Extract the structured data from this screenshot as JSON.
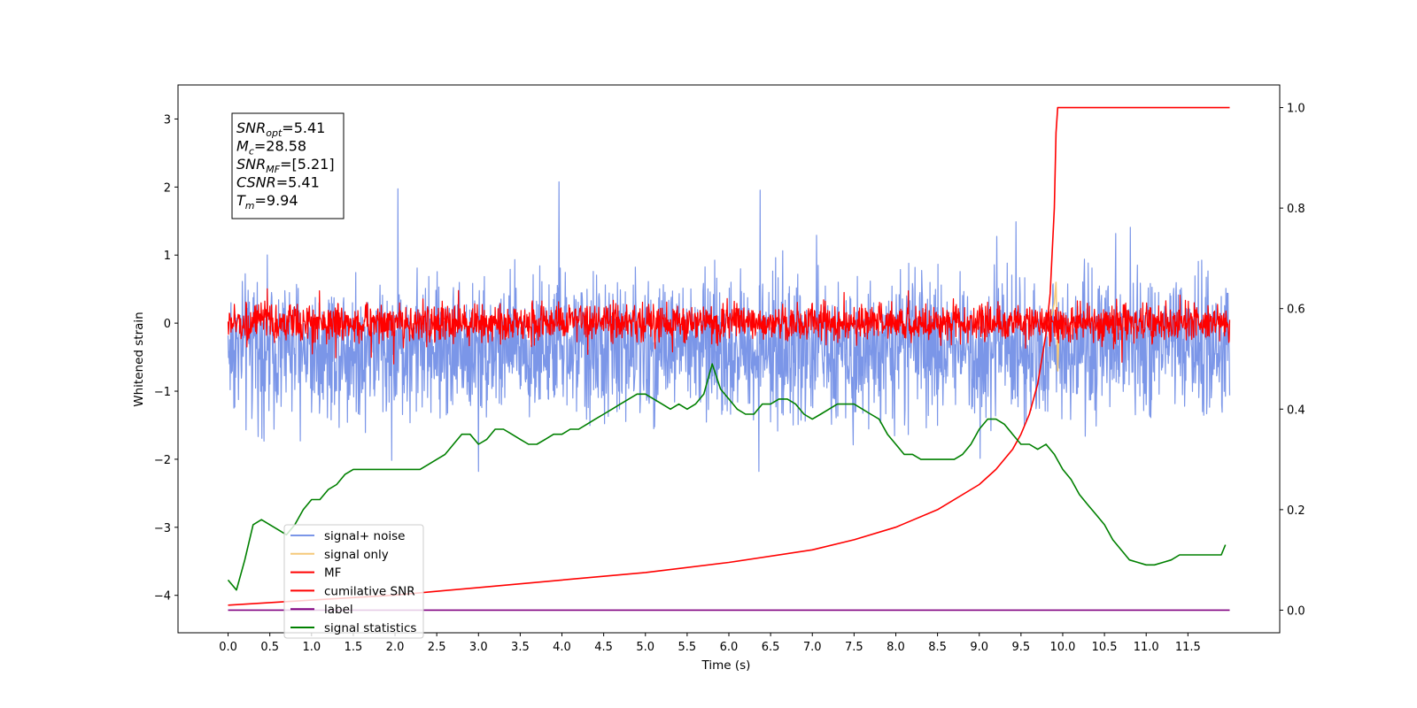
{
  "chart_data": {
    "type": "line",
    "title": "",
    "xlabel": "Time (s)",
    "ylabel": "Whitened strain",
    "xlim": [
      -0.6,
      12.6
    ],
    "ylim": [
      -4.55,
      3.5
    ],
    "y2lim": [
      -0.045,
      1.045
    ],
    "xticks": [
      0.0,
      0.5,
      1.0,
      1.5,
      2.0,
      2.5,
      3.0,
      3.5,
      4.0,
      4.5,
      5.0,
      5.5,
      6.0,
      6.5,
      7.0,
      7.5,
      8.0,
      8.5,
      9.0,
      9.5,
      10.0,
      10.5,
      11.0,
      11.5
    ],
    "xtick_labels": [
      "0.0",
      "0.5",
      "1.0",
      "1.5",
      "2.0",
      "2.5",
      "3.0",
      "3.5",
      "4.0",
      "4.5",
      "5.0",
      "5.5",
      "6.0",
      "6.5",
      "7.0",
      "7.5",
      "8.0",
      "8.5",
      "9.0",
      "9.5",
      "10.0",
      "10.5",
      "11.0",
      "11.5"
    ],
    "yticks": [
      3,
      2,
      1,
      0,
      -1,
      -2,
      -3,
      -4
    ],
    "ytick_labels": [
      "3",
      "2",
      "1",
      "0",
      "−1",
      "−2",
      "−3",
      "−4"
    ],
    "y2ticks": [
      1.0,
      0.8,
      0.6,
      0.4,
      0.2,
      0.0
    ],
    "y2tick_labels": [
      "1.0",
      "0.8",
      "0.6",
      "0.4",
      "0.2",
      "0.0"
    ],
    "grid": false,
    "legend_position": "lower-left",
    "series": [
      {
        "name": "signal+ noise",
        "axis": "left",
        "color": "#7b96e8",
        "kind": "noise",
        "mean": -0.35,
        "spread": 0.62,
        "x_range": [
          0.0,
          12.0
        ]
      },
      {
        "name": "signal only",
        "axis": "left",
        "color": "#f5c97a",
        "kind": "chirp",
        "x": [
          9.85,
          9.9,
          9.92,
          9.94,
          9.96
        ],
        "y": [
          0.0,
          0.3,
          0.6,
          -0.7,
          0.0
        ]
      },
      {
        "name": "MF",
        "axis": "left",
        "color": "#ff0000",
        "kind": "noise",
        "mean": 0.0,
        "spread": 0.17,
        "x_range": [
          0.0,
          12.0
        ]
      },
      {
        "name": "cumilative SNR",
        "axis": "right",
        "color": "#ff0000",
        "x": [
          0.0,
          1.0,
          2.0,
          3.0,
          4.0,
          5.0,
          6.0,
          7.0,
          7.5,
          8.0,
          8.5,
          9.0,
          9.2,
          9.4,
          9.5,
          9.6,
          9.7,
          9.8,
          9.85,
          9.9,
          9.92,
          9.94,
          9.96,
          10.5,
          11.0,
          11.5,
          12.0
        ],
        "y": [
          0.01,
          0.02,
          0.03,
          0.045,
          0.06,
          0.075,
          0.095,
          0.12,
          0.14,
          0.165,
          0.2,
          0.25,
          0.28,
          0.32,
          0.35,
          0.39,
          0.45,
          0.55,
          0.63,
          0.8,
          0.95,
          1.0,
          1.0,
          1.0,
          1.0,
          1.0,
          1.0
        ]
      },
      {
        "name": "label",
        "axis": "right",
        "color": "#800080",
        "x": [
          0.0,
          12.0
        ],
        "y": [
          0.0,
          0.0
        ]
      },
      {
        "name": "signal statistics",
        "axis": "right",
        "color": "#008000",
        "x": [
          0.0,
          0.1,
          0.2,
          0.3,
          0.4,
          0.5,
          0.6,
          0.7,
          0.8,
          0.9,
          1.0,
          1.1,
          1.2,
          1.3,
          1.4,
          1.5,
          1.6,
          1.7,
          1.8,
          1.9,
          2.0,
          2.1,
          2.2,
          2.3,
          2.4,
          2.5,
          2.6,
          2.7,
          2.8,
          2.9,
          3.0,
          3.1,
          3.2,
          3.3,
          3.4,
          3.5,
          3.6,
          3.7,
          3.8,
          3.9,
          4.0,
          4.1,
          4.2,
          4.3,
          4.4,
          4.5,
          4.6,
          4.7,
          4.8,
          4.9,
          5.0,
          5.1,
          5.2,
          5.3,
          5.4,
          5.5,
          5.6,
          5.7,
          5.8,
          5.9,
          6.0,
          6.1,
          6.2,
          6.3,
          6.4,
          6.5,
          6.6,
          6.7,
          6.8,
          6.9,
          7.0,
          7.1,
          7.2,
          7.3,
          7.4,
          7.5,
          7.6,
          7.7,
          7.8,
          7.9,
          8.0,
          8.1,
          8.2,
          8.3,
          8.4,
          8.5,
          8.6,
          8.7,
          8.8,
          8.9,
          9.0,
          9.1,
          9.2,
          9.3,
          9.4,
          9.5,
          9.6,
          9.7,
          9.8,
          9.9,
          10.0,
          10.1,
          10.2,
          10.3,
          10.4,
          10.5,
          10.6,
          10.7,
          10.8,
          10.9,
          11.0,
          11.1,
          11.2,
          11.3,
          11.4,
          11.5,
          11.6,
          11.7,
          11.8,
          11.9,
          11.95
        ],
        "y": [
          0.06,
          0.04,
          0.1,
          0.17,
          0.18,
          0.17,
          0.16,
          0.15,
          0.17,
          0.2,
          0.22,
          0.22,
          0.24,
          0.25,
          0.27,
          0.28,
          0.28,
          0.28,
          0.28,
          0.28,
          0.28,
          0.28,
          0.28,
          0.28,
          0.29,
          0.3,
          0.31,
          0.33,
          0.35,
          0.35,
          0.33,
          0.34,
          0.36,
          0.36,
          0.35,
          0.34,
          0.33,
          0.33,
          0.34,
          0.35,
          0.35,
          0.36,
          0.36,
          0.37,
          0.38,
          0.39,
          0.4,
          0.41,
          0.42,
          0.43,
          0.43,
          0.42,
          0.41,
          0.4,
          0.41,
          0.4,
          0.41,
          0.43,
          0.49,
          0.44,
          0.42,
          0.4,
          0.39,
          0.39,
          0.41,
          0.41,
          0.42,
          0.42,
          0.41,
          0.39,
          0.38,
          0.39,
          0.4,
          0.41,
          0.41,
          0.41,
          0.4,
          0.39,
          0.38,
          0.35,
          0.33,
          0.31,
          0.31,
          0.3,
          0.3,
          0.3,
          0.3,
          0.3,
          0.31,
          0.33,
          0.36,
          0.38,
          0.38,
          0.37,
          0.35,
          0.33,
          0.33,
          0.32,
          0.33,
          0.31,
          0.28,
          0.26,
          0.23,
          0.21,
          0.19,
          0.17,
          0.14,
          0.12,
          0.1,
          0.095,
          0.09,
          0.09,
          0.095,
          0.1,
          0.11,
          0.11,
          0.11,
          0.11,
          0.11,
          0.11,
          0.13
        ]
      }
    ],
    "annotation_box": [
      {
        "main": "SNR",
        "sub": "opt",
        "value": "=5.41"
      },
      {
        "main": "M",
        "sub": "c",
        "value": "=28.58"
      },
      {
        "main": "SNR",
        "sub": "MF",
        "value": "=[5.21]"
      },
      {
        "main": "CSNR",
        "sub": "",
        "value": "=5.41"
      },
      {
        "main": "T",
        "sub": "m",
        "value": "=9.94"
      }
    ],
    "legend_entries": [
      "signal+ noise",
      "signal only",
      "MF",
      "cumilative SNR",
      "label",
      "signal statistics"
    ]
  }
}
